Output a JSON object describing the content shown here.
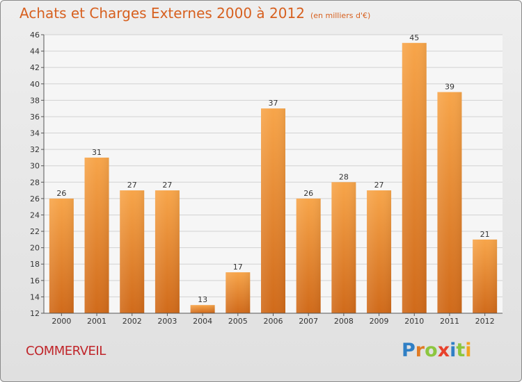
{
  "title": "Achats et Charges Externes 2000 à 2012",
  "unit": "(en milliers d'€)",
  "town": "COMMERVEIL",
  "logo": "Proxiti",
  "chart_data": {
    "type": "bar",
    "categories": [
      "2000",
      "2001",
      "2002",
      "2003",
      "2004",
      "2005",
      "2006",
      "2007",
      "2008",
      "2009",
      "2010",
      "2011",
      "2012"
    ],
    "values": [
      26,
      31,
      27,
      27,
      13,
      17,
      37,
      26,
      28,
      27,
      45,
      39,
      21
    ],
    "ylim": [
      12,
      46
    ],
    "yticks": [
      12,
      14,
      16,
      18,
      20,
      22,
      24,
      26,
      28,
      30,
      32,
      34,
      36,
      38,
      40,
      42,
      44,
      46
    ],
    "grid": true,
    "bar_color": "#f29a3a",
    "bar_color_dark": "#cc6a1c"
  }
}
